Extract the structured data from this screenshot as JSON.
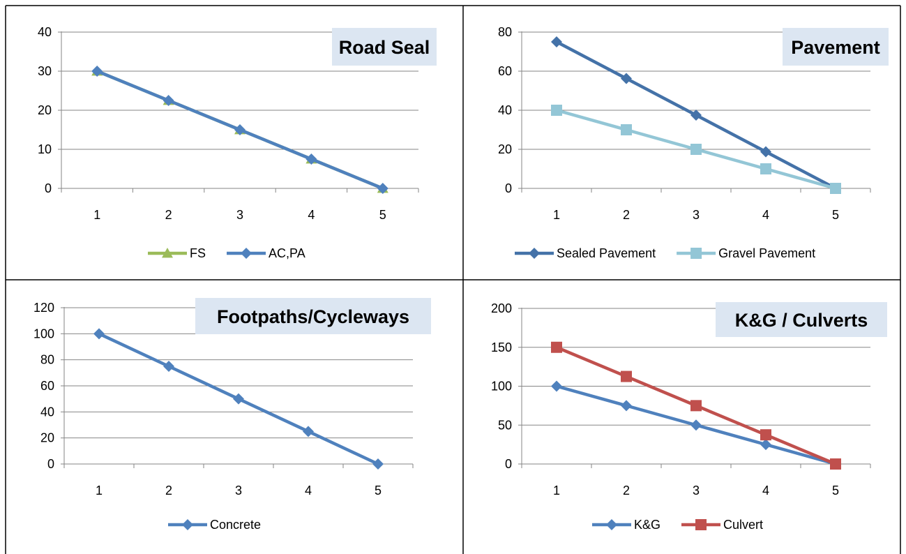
{
  "colors": {
    "green": "#9BBB59",
    "blue": "#4F81BD",
    "dark_blue": "#4472A8",
    "light_blue": "#93C6D6",
    "red": "#C0504D",
    "title_bg": "#DCE6F2",
    "gridline": "#868686"
  },
  "chart_data": [
    {
      "type": "line",
      "title": "Road Seal",
      "categories": [
        "1",
        "2",
        "3",
        "4",
        "5"
      ],
      "ylim": [
        0,
        40
      ],
      "yticks": [
        "0",
        "10",
        "20",
        "30",
        "40"
      ],
      "grid": true,
      "legend": "bottom",
      "series": [
        {
          "name": "FS",
          "values": [
            30,
            22.5,
            15,
            7.5,
            0
          ],
          "color": "#9BBB59",
          "marker": "triangle"
        },
        {
          "name": "AC,PA",
          "values": [
            30,
            22.5,
            15,
            7.5,
            0
          ],
          "color": "#4F81BD",
          "marker": "diamond"
        }
      ]
    },
    {
      "type": "line",
      "title": "Pavement",
      "categories": [
        "1",
        "2",
        "3",
        "4",
        "5"
      ],
      "ylim": [
        0,
        80
      ],
      "yticks": [
        "0",
        "20",
        "40",
        "60",
        "80"
      ],
      "grid": true,
      "legend": "bottom",
      "series": [
        {
          "name": "Sealed Pavement",
          "values": [
            75,
            56.25,
            37.5,
            18.75,
            0
          ],
          "color": "#4472A8",
          "marker": "diamond"
        },
        {
          "name": "Gravel Pavement",
          "values": [
            40,
            30,
            20,
            10,
            0
          ],
          "color": "#93C6D6",
          "marker": "square"
        }
      ]
    },
    {
      "type": "line",
      "title": "Footpaths/Cycleways",
      "categories": [
        "1",
        "2",
        "3",
        "4",
        "5"
      ],
      "ylim": [
        0,
        120
      ],
      "yticks": [
        "0",
        "20",
        "40",
        "60",
        "80",
        "100",
        "120"
      ],
      "grid": true,
      "legend": "bottom",
      "series": [
        {
          "name": "Concrete",
          "values": [
            100,
            75,
            50,
            25,
            0
          ],
          "color": "#4F81BD",
          "marker": "diamond"
        }
      ]
    },
    {
      "type": "line",
      "title": "K&G / Culverts",
      "categories": [
        "1",
        "2",
        "3",
        "4",
        "5"
      ],
      "ylim": [
        0,
        200
      ],
      "yticks": [
        "0",
        "50",
        "100",
        "150",
        "200"
      ],
      "grid": true,
      "legend": "bottom",
      "series": [
        {
          "name": "K&G",
          "values": [
            100,
            75,
            50,
            25,
            0
          ],
          "color": "#4F81BD",
          "marker": "diamond"
        },
        {
          "name": "Culvert",
          "values": [
            150,
            112.5,
            75,
            37.5,
            0
          ],
          "color": "#C0504D",
          "marker": "square"
        }
      ]
    }
  ]
}
